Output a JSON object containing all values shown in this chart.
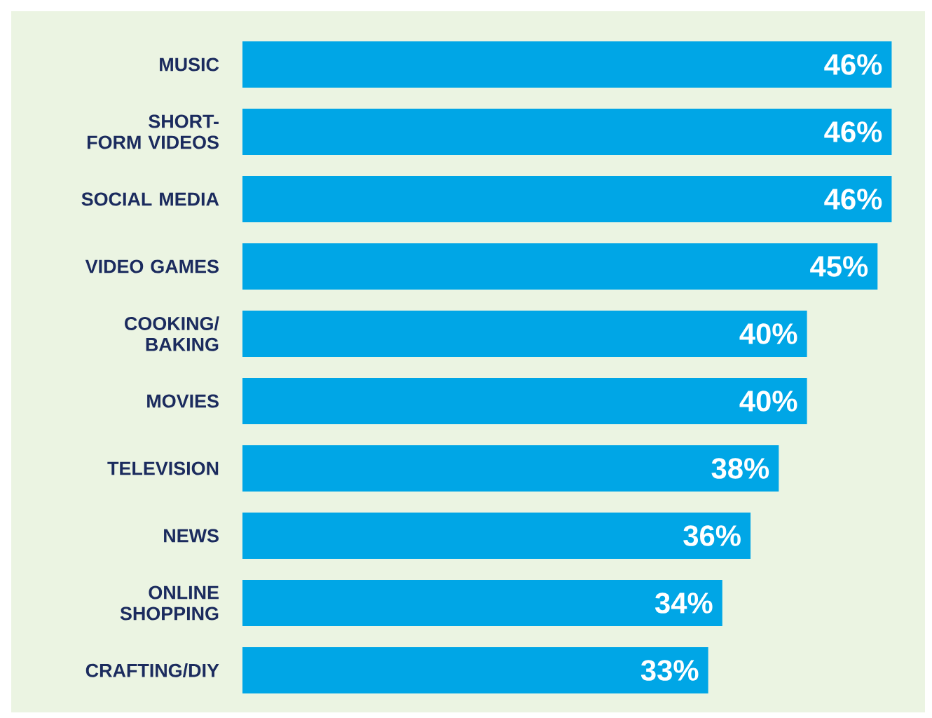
{
  "chart_data": {
    "type": "bar",
    "orientation": "horizontal",
    "categories": [
      "MUSIC",
      "SHORT-FORM VIDEOS",
      "SOCIAL MEDIA",
      "VIDEO GAMES",
      "COOKING/BAKING",
      "MOVIES",
      "TELEVISION",
      "NEWS",
      "ONLINE SHOPPING",
      "CRAFTING/DIY"
    ],
    "values": [
      46,
      46,
      46,
      45,
      40,
      40,
      38,
      36,
      34,
      33
    ],
    "value_labels": [
      "46%",
      "46%",
      "46%",
      "45%",
      "40%",
      "40%",
      "38%",
      "36%",
      "34%",
      "33%"
    ],
    "color": "#00a6e6"
  }
}
